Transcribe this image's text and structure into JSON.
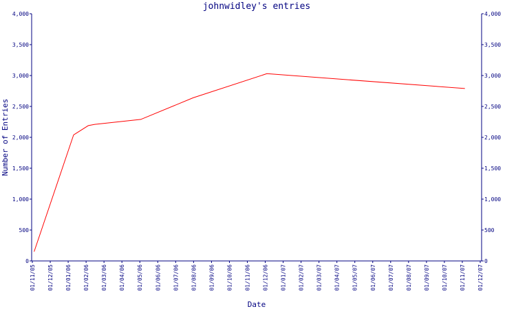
{
  "chart_data": {
    "type": "line",
    "title": "johnwidley's entries",
    "xlabel": "Date",
    "ylabel": "Number of Entries",
    "ylim": [
      0,
      4000
    ],
    "y_ticks": [
      "0",
      "500",
      "1,000",
      "1,500",
      "2,000",
      "2,500",
      "3,000",
      "3,500",
      "4,000"
    ],
    "x_ticks": [
      "01/11/05",
      "01/12/05",
      "01/01/06",
      "01/02/06",
      "01/03/06",
      "01/04/06",
      "01/05/06",
      "01/06/06",
      "01/07/06",
      "01/08/06",
      "01/09/06",
      "01/10/06",
      "01/11/06",
      "01/12/06",
      "01/01/07",
      "01/02/07",
      "01/03/07",
      "01/04/07",
      "01/05/07",
      "01/06/07",
      "01/07/07",
      "01/08/07",
      "01/09/07",
      "01/10/07",
      "01/11/07",
      "01/12/07"
    ],
    "grid": false,
    "colors": {
      "axis": "#000080",
      "line": "#ff0000",
      "background": "#ffffff"
    },
    "series": [
      {
        "points": [
          {
            "x": "2005-11-04",
            "y": 150
          },
          {
            "x": "2006-01-10",
            "y": 2040
          },
          {
            "x": "2006-02-04",
            "y": 2190
          },
          {
            "x": "2006-02-15",
            "y": 2210
          },
          {
            "x": "2006-05-04",
            "y": 2290
          },
          {
            "x": "2006-08-01",
            "y": 2640
          },
          {
            "x": "2006-12-04",
            "y": 3030
          },
          {
            "x": "2007-11-05",
            "y": 2790
          }
        ]
      }
    ]
  }
}
